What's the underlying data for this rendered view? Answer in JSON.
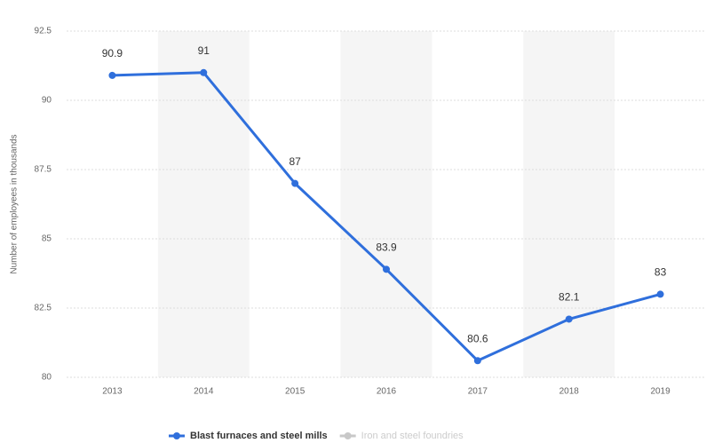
{
  "chart_data": {
    "type": "line",
    "y_label": "Number of employees in thousands",
    "categories": [
      "2013",
      "2014",
      "2015",
      "2016",
      "2017",
      "2018",
      "2019"
    ],
    "series": [
      {
        "name": "Blast furnaces and steel mills",
        "color": "#2f6fdc",
        "values": [
          90.9,
          91,
          87,
          83.9,
          80.6,
          82.1,
          83
        ]
      },
      {
        "name": "Iron and steel foundries",
        "color": "#c8c8c8",
        "values": [
          null,
          null,
          null,
          null,
          null,
          null,
          null
        ]
      }
    ],
    "ylim": [
      80,
      92.5
    ],
    "yticks": [
      80,
      82.5,
      85,
      87.5,
      90,
      92.5
    ],
    "grid": true
  }
}
